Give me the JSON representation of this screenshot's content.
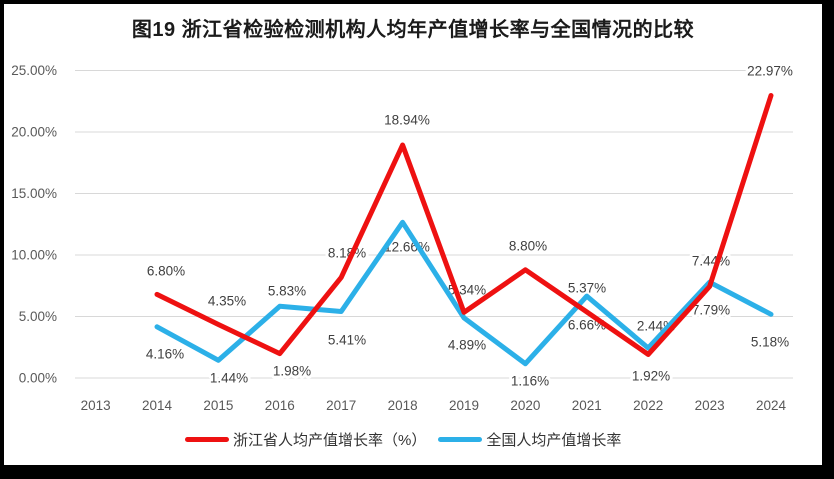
{
  "chart_data": {
    "type": "line",
    "title": "图19  浙江省检验检测机构人均年产值增长率与全国情况的比较",
    "categories": [
      "2013",
      "2014",
      "2015",
      "2016",
      "2017",
      "2018",
      "2019",
      "2020",
      "2021",
      "2022",
      "2023",
      "2024"
    ],
    "series": [
      {
        "key": "zhejiang",
        "name": "浙江省人均产值增长率（%）",
        "color": "#ee1111",
        "values": [
          null,
          6.8,
          4.35,
          1.98,
          8.18,
          18.94,
          5.34,
          8.8,
          5.37,
          1.92,
          7.44,
          22.97
        ],
        "labels": [
          "6.80%",
          "4.35%",
          "1.98%",
          "8.18%",
          "18.94%",
          "5.34%",
          "8.80%",
          "5.37%",
          "1.92%",
          "7.44%",
          "22.97%"
        ]
      },
      {
        "key": "national",
        "name": "全国人均产值增长率",
        "color": "#2cb0e8",
        "values": [
          null,
          4.16,
          1.44,
          5.83,
          5.41,
          12.66,
          4.89,
          1.16,
          6.66,
          2.44,
          7.79,
          5.18
        ],
        "labels": [
          "4.16%",
          "1.44%",
          "5.83%",
          "5.41%",
          "12.66%",
          "4.89%",
          "1.16%",
          "6.66%",
          "2.44%",
          "7.79%",
          "5.18%"
        ]
      }
    ],
    "y_ticks": [
      "0.00%",
      "5.00%",
      "10.00%",
      "15.00%",
      "20.00%",
      "25.00%"
    ],
    "y_tick_values": [
      0,
      5,
      10,
      15,
      20,
      25
    ],
    "ylim": [
      0,
      25
    ],
    "grid": true,
    "grid_color": "#d8d8d8",
    "legend_position": "bottom"
  }
}
